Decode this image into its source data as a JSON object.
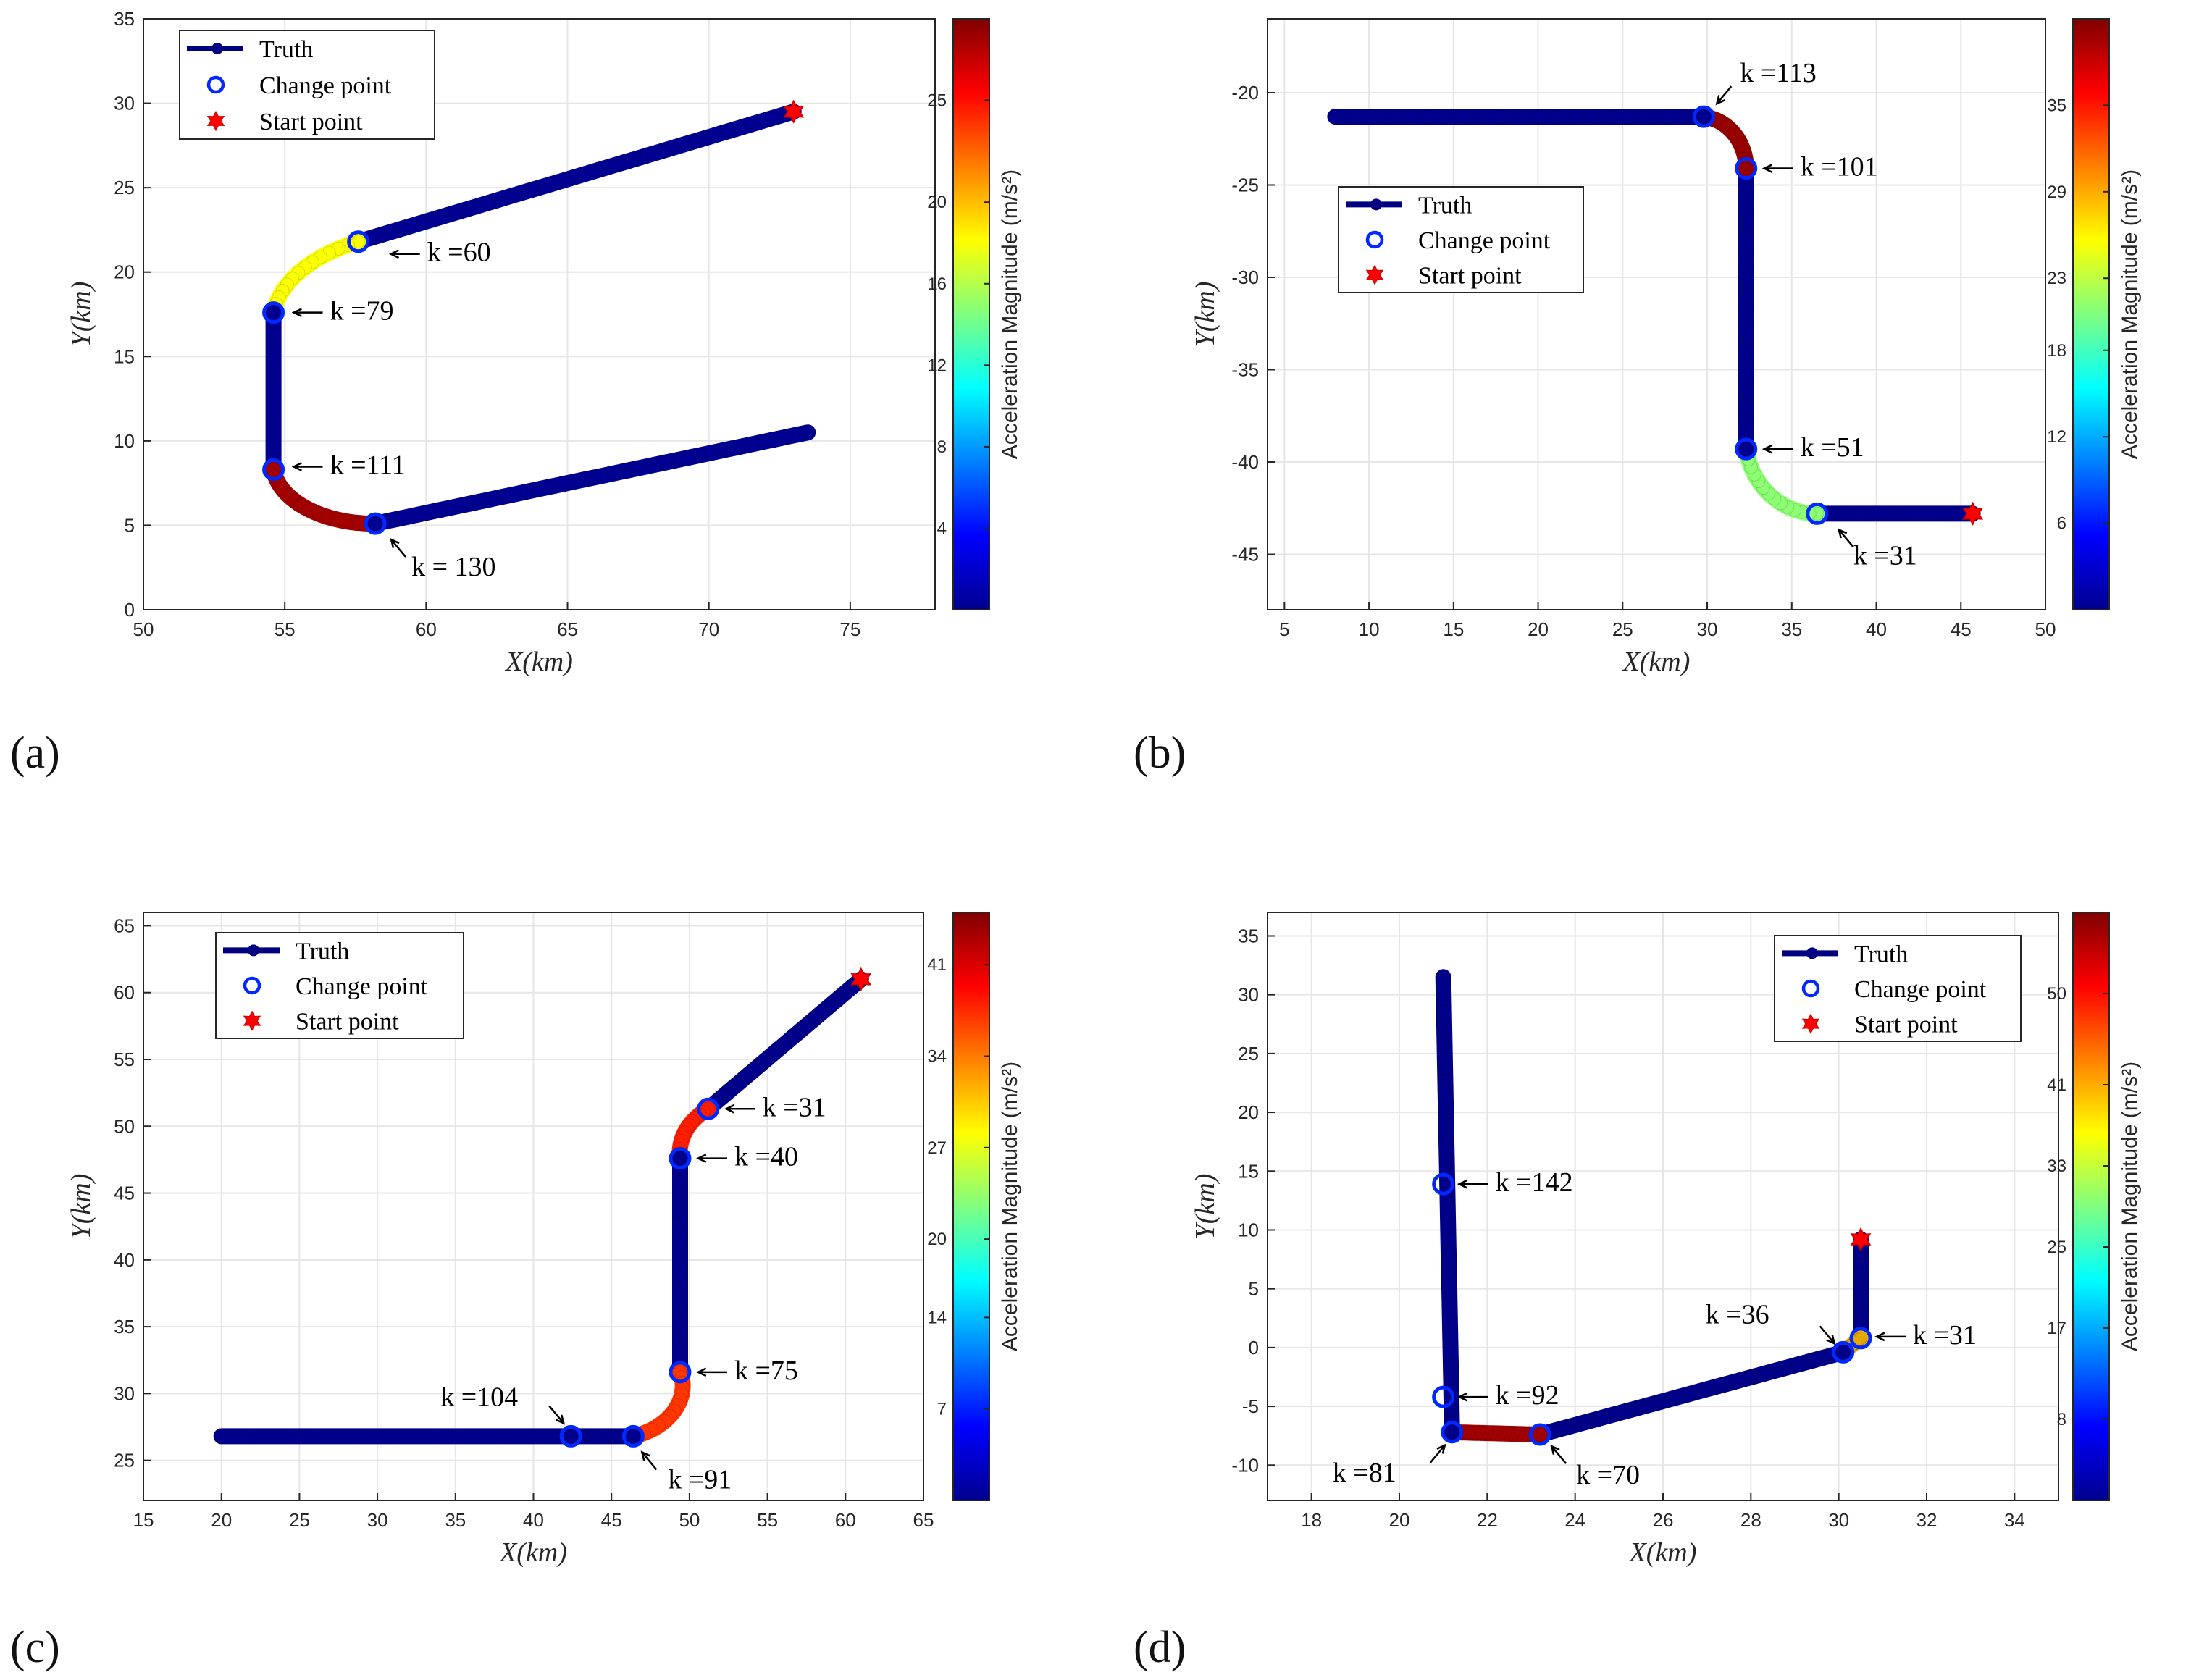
{
  "chart_data": [
    {
      "panel": "(a)",
      "type": "scatter",
      "xlabel": "X(km)",
      "ylabel": "Y(km)",
      "xlim": [
        50,
        78
      ],
      "ylim": [
        0,
        35
      ],
      "xticks": [
        50,
        55,
        60,
        65,
        70,
        75
      ],
      "yticks": [
        0,
        5,
        10,
        15,
        20,
        25,
        30,
        35
      ],
      "colorbar": {
        "label": "Acceleration Magnitude (m/s²)",
        "ticks": [
          4,
          8,
          12,
          16,
          20,
          25
        ],
        "max": 29
      },
      "legend": {
        "position": "top-left",
        "entries": [
          "Truth",
          "Change point",
          "Start point"
        ]
      },
      "segments": [
        {
          "type": "line",
          "from": [
            73,
            29.5
          ],
          "to": [
            57.6,
            21.8
          ],
          "accel": 0.5
        },
        {
          "type": "arc",
          "from": [
            57.6,
            21.8
          ],
          "to": [
            54.6,
            17.6
          ],
          "center": [
            59.9,
            16.8
          ],
          "accel": 18
        },
        {
          "type": "line",
          "from": [
            54.6,
            17.6
          ],
          "to": [
            54.6,
            8.3
          ],
          "accel": 0.5
        },
        {
          "type": "arc",
          "from": [
            54.6,
            8.3
          ],
          "to": [
            58.2,
            5.1
          ],
          "center": [
            58.1,
            8.7
          ],
          "accel": 28
        },
        {
          "type": "line",
          "from": [
            58.2,
            5.1
          ],
          "to": [
            73.5,
            10.5
          ],
          "accel": 0.5
        }
      ],
      "start_point": [
        73,
        29.5
      ],
      "change_points": [
        {
          "x": 57.6,
          "y": 21.8,
          "label": "k =60"
        },
        {
          "x": 54.6,
          "y": 17.6,
          "label": "k =79"
        },
        {
          "x": 54.6,
          "y": 8.3,
          "label": "k =111"
        },
        {
          "x": 58.2,
          "y": 5.1,
          "label": "k = 130"
        }
      ]
    },
    {
      "panel": "(b)",
      "type": "scatter",
      "xlabel": "X(km)",
      "ylabel": "Y(km)",
      "xlim": [
        4,
        50
      ],
      "ylim": [
        -48,
        -16
      ],
      "xticks": [
        5,
        10,
        15,
        20,
        25,
        30,
        35,
        40,
        45,
        50
      ],
      "yticks": [
        -20,
        -25,
        -30,
        -35,
        -40,
        -45
      ],
      "colorbar": {
        "label": "Acceleration Magnitude (m/s²)",
        "ticks": [
          6,
          12,
          18,
          23,
          29,
          35
        ],
        "max": 41
      },
      "legend": {
        "position": "top-left",
        "entries": [
          "Truth",
          "Change point",
          "Start point"
        ]
      },
      "segments": [
        {
          "type": "line",
          "from": [
            45.7,
            -42.8
          ],
          "to": [
            36.5,
            -42.8
          ],
          "accel": 0.5
        },
        {
          "type": "arc",
          "from": [
            36.5,
            -42.8
          ],
          "to": [
            32.3,
            -39.3
          ],
          "center": [
            36.4,
            -38.5
          ],
          "accel": 21
        },
        {
          "type": "line",
          "from": [
            32.3,
            -39.3
          ],
          "to": [
            32.3,
            -24.1
          ],
          "accel": 0.5
        },
        {
          "type": "arc",
          "from": [
            32.3,
            -24.1
          ],
          "to": [
            29.8,
            -21.3
          ],
          "center": [
            29.5,
            -24.1
          ],
          "accel": 40
        },
        {
          "type": "line",
          "from": [
            29.8,
            -21.3
          ],
          "to": [
            8,
            -21.3
          ],
          "accel": 0.5
        }
      ],
      "start_point": [
        45.7,
        -42.8
      ],
      "change_points": [
        {
          "x": 36.5,
          "y": -42.8,
          "label": "k =31"
        },
        {
          "x": 32.3,
          "y": -39.3,
          "label": "k =51"
        },
        {
          "x": 32.3,
          "y": -24.1,
          "label": "k =101"
        },
        {
          "x": 29.8,
          "y": -21.3,
          "label": "k =113"
        }
      ]
    },
    {
      "panel": "(c)",
      "type": "scatter",
      "xlabel": "X(km)",
      "ylabel": "Y(km)",
      "xlim": [
        15,
        65
      ],
      "ylim": [
        22,
        66
      ],
      "xticks": [
        15,
        20,
        25,
        30,
        35,
        40,
        45,
        50,
        55,
        60,
        65
      ],
      "yticks": [
        25,
        30,
        35,
        40,
        45,
        50,
        55,
        60,
        65
      ],
      "colorbar": {
        "label": "Acceleration Magnitude (m/s²)",
        "ticks": [
          7,
          14,
          20,
          27,
          34,
          41
        ],
        "max": 45
      },
      "legend": {
        "position": "top-left",
        "entries": [
          "Truth",
          "Change point",
          "Start point"
        ]
      },
      "segments": [
        {
          "type": "line",
          "from": [
            61,
            61
          ],
          "to": [
            51.2,
            51.3
          ],
          "accel": 0.5
        },
        {
          "type": "arc",
          "from": [
            51.2,
            51.3
          ],
          "to": [
            49.4,
            47.6
          ],
          "center": [
            53.1,
            47.5
          ],
          "accel": 38
        },
        {
          "type": "line",
          "from": [
            49.4,
            47.6
          ],
          "to": [
            49.4,
            31.6
          ],
          "accel": 0.5
        },
        {
          "type": "arc",
          "from": [
            49.4,
            31.6
          ],
          "to": [
            46.4,
            26.8
          ],
          "center": [
            46.3,
            31.7
          ],
          "accel": 37
        },
        {
          "type": "line",
          "from": [
            46.4,
            26.8
          ],
          "to": [
            20,
            26.8
          ],
          "accel": 0.5
        }
      ],
      "start_point": [
        61,
        61
      ],
      "change_points": [
        {
          "x": 51.2,
          "y": 51.3,
          "label": "k =31"
        },
        {
          "x": 49.4,
          "y": 47.6,
          "label": "k =40"
        },
        {
          "x": 49.4,
          "y": 31.6,
          "label": "k =75"
        },
        {
          "x": 46.4,
          "y": 26.8,
          "label": "k =91"
        },
        {
          "x": 42.4,
          "y": 26.8,
          "label": "k =104"
        }
      ]
    },
    {
      "panel": "(d)",
      "type": "scatter",
      "xlabel": "X(km)",
      "ylabel": "Y(km)",
      "xlim": [
        17,
        35
      ],
      "ylim": [
        -13,
        37
      ],
      "xticks": [
        18,
        20,
        22,
        24,
        26,
        28,
        30,
        32,
        34
      ],
      "yticks": [
        -10,
        -5,
        0,
        5,
        10,
        15,
        20,
        25,
        30,
        35
      ],
      "colorbar": {
        "label": "Acceleration Magnitude (m/s²)",
        "ticks": [
          8,
          17,
          25,
          33,
          41,
          50
        ],
        "max": 58
      },
      "legend": {
        "position": "top-right",
        "entries": [
          "Truth",
          "Change point",
          "Start point"
        ]
      },
      "segments": [
        {
          "type": "line",
          "from": [
            30.5,
            9.2
          ],
          "to": [
            30.5,
            0.8
          ],
          "accel": 0.5
        },
        {
          "type": "line",
          "from": [
            30.5,
            0.8
          ],
          "to": [
            30.1,
            -0.4
          ],
          "accel": 40
        },
        {
          "type": "line",
          "from": [
            30.1,
            -0.4
          ],
          "to": [
            23.2,
            -7.4
          ],
          "accel": 0.5
        },
        {
          "type": "line",
          "from": [
            23.2,
            -7.4
          ],
          "to": [
            21.2,
            -7.2
          ],
          "accel": 56
        },
        {
          "type": "line",
          "from": [
            21.2,
            -7.2
          ],
          "to": [
            21.0,
            31.5
          ],
          "accel": 0.5
        }
      ],
      "start_point": [
        30.5,
        9.2
      ],
      "change_points": [
        {
          "x": 30.5,
          "y": 0.8,
          "label": "k =31"
        },
        {
          "x": 30.1,
          "y": -0.4,
          "label": "k =36"
        },
        {
          "x": 23.2,
          "y": -7.4,
          "label": "k =70"
        },
        {
          "x": 21.2,
          "y": -7.2,
          "label": "k =81"
        },
        {
          "x": 21.0,
          "y": -4.2,
          "label": "k =92"
        },
        {
          "x": 21.0,
          "y": 13.9,
          "label": "k =142"
        }
      ]
    }
  ]
}
